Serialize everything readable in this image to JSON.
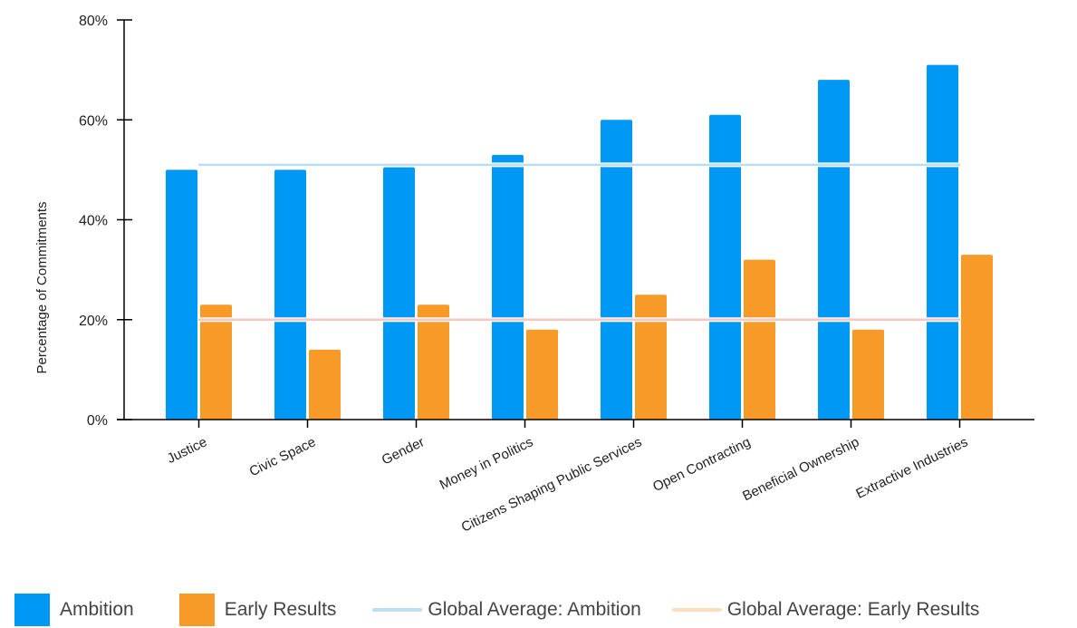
{
  "chart_data": {
    "type": "bar",
    "ylabel": "Percentage of Commitments",
    "ylim": [
      0,
      80
    ],
    "yticks": [
      "0%",
      "20%",
      "40%",
      "60%",
      "80%"
    ],
    "ytick_values": [
      0,
      20,
      40,
      60,
      80
    ],
    "categories": [
      "Justice",
      "Civic Space",
      "Gender",
      "Money in Politics",
      "Citizens Shaping Public Services",
      "Open Contracting",
      "Beneficial Ownership",
      "Extractive Industries"
    ],
    "series": [
      {
        "name": "Ambition",
        "values": [
          50,
          50,
          50.5,
          53,
          60,
          61,
          68,
          71
        ]
      },
      {
        "name": "Early Results",
        "values": [
          23,
          14,
          23,
          18,
          25,
          32,
          18,
          33
        ]
      }
    ],
    "reference_lines": [
      {
        "name": "Global Average: Ambition",
        "value": 51
      },
      {
        "name": "Global Average: Early Results",
        "value": 20
      }
    ],
    "grid": false,
    "legend_position": "bottom"
  },
  "colors": {
    "ambition": "#0098F5",
    "early_results": "#F79A28",
    "avg_ambition": "#BCDDF3",
    "avg_early_results": "#F3C9C4",
    "avg_early_legend": "#FDDDBB",
    "axis": "#000000",
    "text": "#222222"
  },
  "legend": {
    "ambition": "Ambition",
    "early_results": "Early Results",
    "avg_ambition": "Global Average: Ambition",
    "avg_early_results": "Global Average: Early Results"
  }
}
